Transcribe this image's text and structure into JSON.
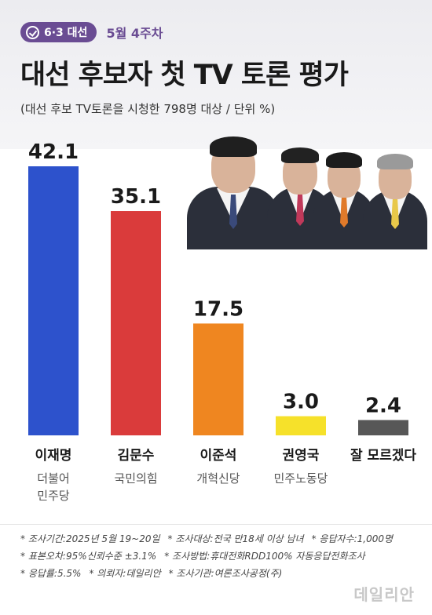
{
  "header": {
    "badge": "6·3 대선",
    "week": "5월 4주차",
    "title": "대선 후보자 첫 TV 토론 평가",
    "subtitle": "(대선 후보 TV토론을 시청한 798명 대상 / 단위 %)"
  },
  "chart_data": {
    "type": "bar",
    "categories": [
      "이재명",
      "김문수",
      "이준석",
      "권영국",
      "잘 모르겠다"
    ],
    "parties": [
      "더불어\n민주당",
      "국민의힘",
      "개혁신당",
      "민주노동당",
      ""
    ],
    "values": [
      42.1,
      35.1,
      17.5,
      3.0,
      2.4
    ],
    "value_labels": [
      "42.1",
      "35.1",
      "17.5",
      "3.0",
      "2.4"
    ],
    "colors": [
      "#2d52cc",
      "#da3b3b",
      "#ef8620",
      "#f6e12a",
      "#575757"
    ],
    "ylim": [
      0,
      42.1
    ],
    "title": "대선 후보자 첫 TV 토론 평가",
    "xlabel": "",
    "ylabel": ""
  },
  "footnotes": {
    "line1": [
      "* 조사기간:2025년 5월 19~20일",
      "* 조사대상:전국 만18세 이상 남녀",
      "* 응답자수:1,000명"
    ],
    "line2": [
      "* 표본오차:95%신뢰수준 ±3.1%",
      "* 조사방법:휴대전화RDD100% 자동응답전화조사"
    ],
    "line3": [
      "* 응답률:5.5%",
      "* 의뢰자:데일리안",
      "* 조사기관:여론조사공정(주)"
    ]
  },
  "watermark": "데일리안",
  "colors": {
    "accent": "#6a4c93"
  }
}
